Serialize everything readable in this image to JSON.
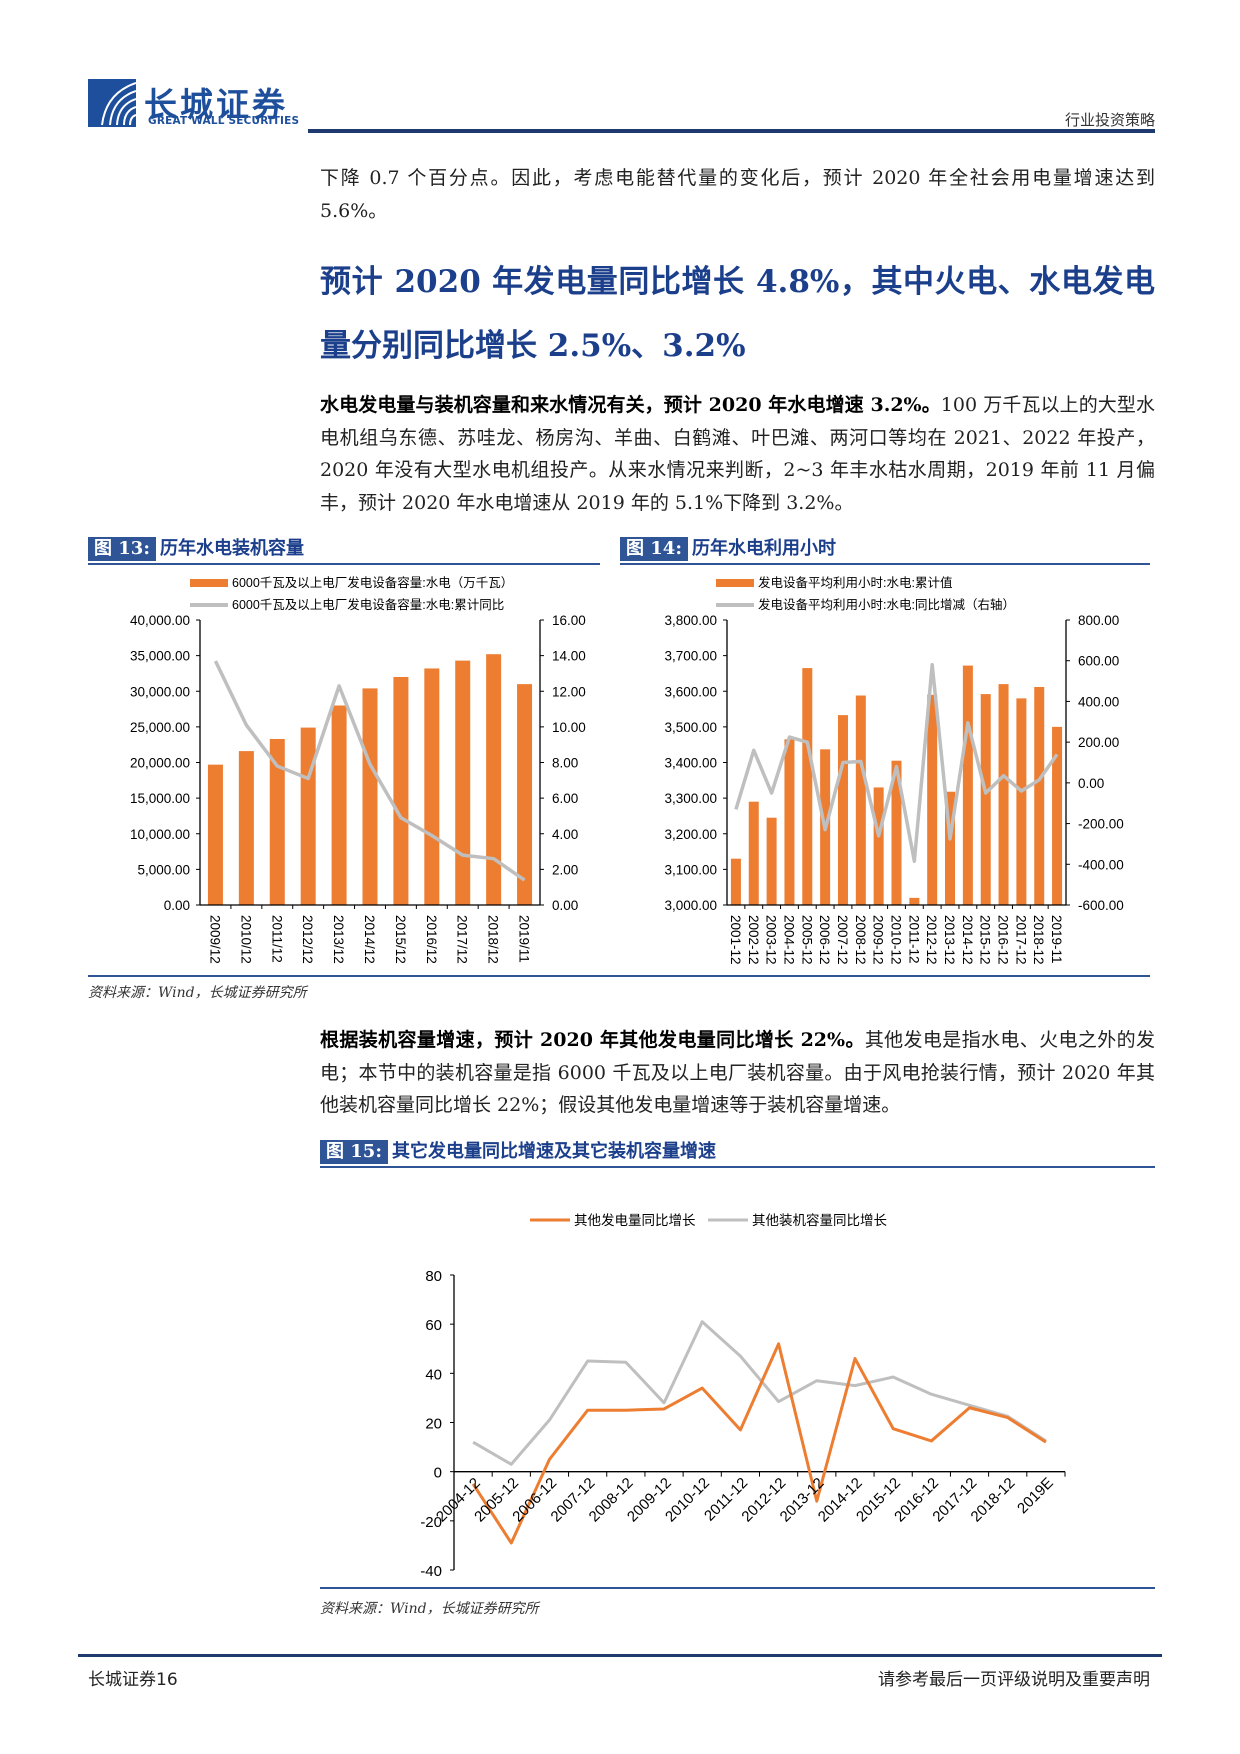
{
  "header": {
    "logo_cn": "长城证券",
    "logo_en": "GREAT WALL SECURITIES",
    "section": "行业投资策略"
  },
  "intro": "下降 0.7 个百分点。因此，考虑电能替代量的变化后，预计 2020 年全社会用电量增速达到 5.6%。",
  "heading": "预计 2020 年发电量同比增长 4.8%，其中火电、水电发电量分别同比增长 2.5%、3.2%",
  "para1": {
    "bold": "水电发电量与装机容量和来水情况有关，预计 2020 年水电增速 3.2%。",
    "text": "100 万千瓦以上的大型水电机组乌东德、苏哇龙、杨房沟、羊曲、白鹤滩、叶巴滩、两河口等均在 2021、2022 年投产，2020 年没有大型水电机组投产。从来水情况来判断，2~3 年丰水枯水周期，2019 年前 11 月偏丰，预计 2020 年水电增速从 2019 年的 5.1%下降到 3.2%。"
  },
  "fig13": {
    "label": "图 13:",
    "title": "历年水电装机容量",
    "source": "资料来源：Wind，长城证券研究所"
  },
  "fig14": {
    "label": "图 14:",
    "title": "历年水电利用小时"
  },
  "para2": {
    "bold": "根据装机容量增速，预计 2020 年其他发电量同比增长 22%。",
    "text": "其他发电是指水电、火电之外的发电；本节中的装机容量是指 6000 千瓦及以上电厂装机容量。由于风电抢装行情，预计 2020 年其他装机容量同比增长 22%；假设其他发电量增速等于装机容量增速。"
  },
  "fig15": {
    "label": "图 15:",
    "title": "其它发电量同比增速及其它装机容量增速",
    "source": "资料来源：Wind，长城证券研究所"
  },
  "footer": {
    "left": "长城证券16",
    "right": "请参考最后一页评级说明及重要声明"
  },
  "colors": {
    "orange": "#ed7d31",
    "gray": "#bfbfbf",
    "blue": "#2f5597"
  },
  "chart_data": [
    {
      "type": "bar+line",
      "categories": [
        "2009/12",
        "2010/12",
        "2011/12",
        "2012/12",
        "2013/12",
        "2014/12",
        "2015/12",
        "2016/12",
        "2017/12",
        "2018/12",
        "2019/11"
      ],
      "series": [
        {
          "name": "6000千瓦及以上电厂发电设备容量:水电（万千瓦）",
          "kind": "bar",
          "axis": "left",
          "values": [
            19700,
            21600,
            23300,
            24900,
            28000,
            30400,
            32000,
            33200,
            34300,
            35200,
            31000
          ]
        },
        {
          "name": "6000千瓦及以上电厂发电设备容量:水电:累计同比",
          "kind": "line",
          "axis": "right",
          "values": [
            13.7,
            10.1,
            7.8,
            7.1,
            12.3,
            7.9,
            4.9,
            3.9,
            2.8,
            2.6,
            1.4
          ]
        }
      ],
      "ylim": [
        0,
        40000
      ],
      "yticks": [
        "0.00",
        "5,000.00",
        "10,000.00",
        "15,000.00",
        "20,000.00",
        "25,000.00",
        "30,000.00",
        "35,000.00",
        "40,000.00"
      ],
      "y2lim": [
        0,
        16
      ],
      "y2ticks": [
        "0.00",
        "2.00",
        "4.00",
        "6.00",
        "8.00",
        "10.00",
        "12.00",
        "14.00",
        "16.00"
      ],
      "legend": "top"
    },
    {
      "type": "bar+line",
      "categories": [
        "2001-12",
        "2002-12",
        "2003-12",
        "2004-12",
        "2005-12",
        "2006-12",
        "2007-12",
        "2008-12",
        "2009-12",
        "2010-12",
        "2011-12",
        "2012-12",
        "2013-12",
        "2014-12",
        "2015-12",
        "2016-12",
        "2017-12",
        "2018-12",
        "2019-11"
      ],
      "series": [
        {
          "name": "发电设备平均利用小时:水电:累计值",
          "kind": "bar",
          "axis": "left",
          "values": [
            3130,
            3290,
            3245,
            3465,
            3665,
            3437,
            3533,
            3588,
            3330,
            3405,
            3020,
            3590,
            3318,
            3672,
            3592,
            3620,
            3580,
            3612,
            3500
          ]
        },
        {
          "name": "发电设备平均利用小时:水电:同比增减（右轴）",
          "kind": "line",
          "axis": "right",
          "values": [
            -130,
            160,
            -50,
            225,
            200,
            -230,
            100,
            105,
            -260,
            80,
            -385,
            580,
            -275,
            295,
            -50,
            35,
            -40,
            15,
            140
          ]
        }
      ],
      "ylim": [
        3000,
        3800
      ],
      "yticks": [
        "3,000.00",
        "3,100.00",
        "3,200.00",
        "3,300.00",
        "3,400.00",
        "3,500.00",
        "3,600.00",
        "3,700.00",
        "3,800.00"
      ],
      "y2lim": [
        -600,
        800
      ],
      "y2ticks": [
        "-600.00",
        "-400.00",
        "-200.00",
        "0.00",
        "200.00",
        "400.00",
        "600.00",
        "800.00"
      ],
      "legend": "top"
    },
    {
      "type": "line",
      "categories": [
        "2004-12",
        "2005-12",
        "2006-12",
        "2007-12",
        "2008-12",
        "2009-12",
        "2010-12",
        "2011-12",
        "2012-12",
        "2013-12",
        "2014-12",
        "2015-12",
        "2016-12",
        "2017-12",
        "2018-12",
        "2019E"
      ],
      "series": [
        {
          "name": "其他发电量同比增长",
          "color": "#ed7d31",
          "values": [
            -5,
            -29,
            5,
            25,
            25,
            25.5,
            34,
            17,
            52,
            -12,
            46,
            17.5,
            12.5,
            26,
            22,
            12
          ]
        },
        {
          "name": "其他装机容量同比增长",
          "color": "#bfbfbf",
          "values": [
            12,
            3,
            21,
            45,
            44.5,
            28,
            61,
            47,
            28.5,
            37,
            35,
            38.5,
            31.5,
            27,
            22.5,
            12.5
          ]
        }
      ],
      "ylim": [
        -40,
        80
      ],
      "yticks": [
        "-40",
        "-20",
        "0",
        "20",
        "40",
        "60",
        "80"
      ],
      "legend": "top"
    }
  ]
}
